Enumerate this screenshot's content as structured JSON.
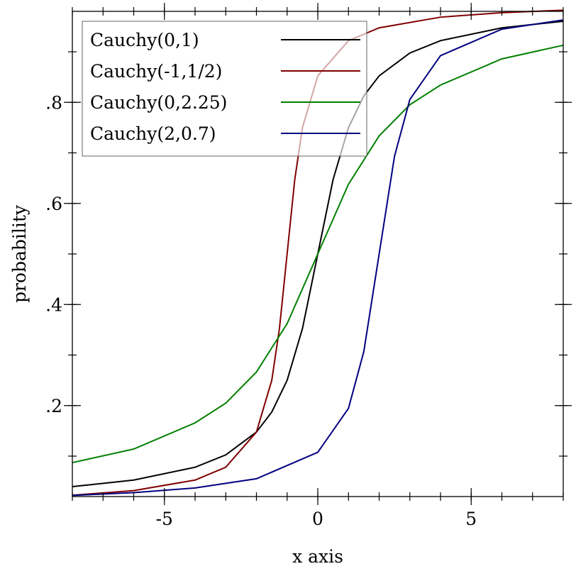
{
  "chart_data": {
    "type": "line",
    "title": "",
    "xlabel": "x axis",
    "ylabel": "probability",
    "xlim": [
      -8,
      8
    ],
    "ylim": [
      0.02,
      0.98
    ],
    "x_ticks": [
      {
        "value": -5,
        "label": "-5"
      },
      {
        "value": 0,
        "label": "0"
      },
      {
        "value": 5,
        "label": "5"
      }
    ],
    "y_ticks": [
      {
        "value": 0.2,
        "label": ".2"
      },
      {
        "value": 0.4,
        "label": ".4"
      },
      {
        "value": 0.6,
        "label": ".6"
      },
      {
        "value": 0.8,
        "label": ".8"
      }
    ],
    "legend_position": "top-left",
    "grid": false,
    "series": [
      {
        "name": "Cauchy(0,1)",
        "color": "#000000",
        "x": [
          -8,
          -6,
          -4,
          -3,
          -2,
          -1.5,
          -1,
          -0.5,
          0,
          0.5,
          1,
          1.5,
          2,
          3,
          4,
          6,
          8
        ],
        "y": [
          0.0396,
          0.0526,
          0.078,
          0.1024,
          0.1476,
          0.1872,
          0.25,
          0.3524,
          0.5,
          0.6476,
          0.75,
          0.8128,
          0.8524,
          0.8976,
          0.922,
          0.9474,
          0.9604
        ]
      },
      {
        "name": "Cauchy(-1,1/2)",
        "color": "#800000",
        "x": [
          -8,
          -6,
          -4,
          -3,
          -2,
          -1.5,
          -1.25,
          -1,
          -0.75,
          -0.5,
          0,
          1,
          2,
          4,
          6,
          8
        ],
        "y": [
          0.0227,
          0.0318,
          0.0526,
          0.078,
          0.1476,
          0.25,
          0.3524,
          0.5,
          0.6476,
          0.75,
          0.8524,
          0.922,
          0.9474,
          0.9685,
          0.9774,
          0.9823
        ]
      },
      {
        "name": "Cauchy(0,2.25)",
        "color": "#008000",
        "x": [
          -8,
          -6,
          -4,
          -3,
          -2,
          -1,
          0,
          1,
          2,
          3,
          4,
          6,
          8
        ],
        "y": [
          0.0871,
          0.114,
          0.1658,
          0.2048,
          0.2664,
          0.3621,
          0.5,
          0.6379,
          0.7336,
          0.7952,
          0.8342,
          0.886,
          0.9129
        ]
      },
      {
        "name": "Cauchy(2,0.7)",
        "color": "#000080",
        "x": [
          -8,
          -6,
          -4,
          -2,
          0,
          1,
          1.5,
          2,
          2.5,
          3,
          4,
          6,
          8
        ],
        "y": [
          0.0222,
          0.0277,
          0.037,
          0.0552,
          0.1076,
          0.1945,
          0.3068,
          0.5,
          0.6932,
          0.8055,
          0.8924,
          0.9448,
          0.963
        ]
      }
    ]
  }
}
